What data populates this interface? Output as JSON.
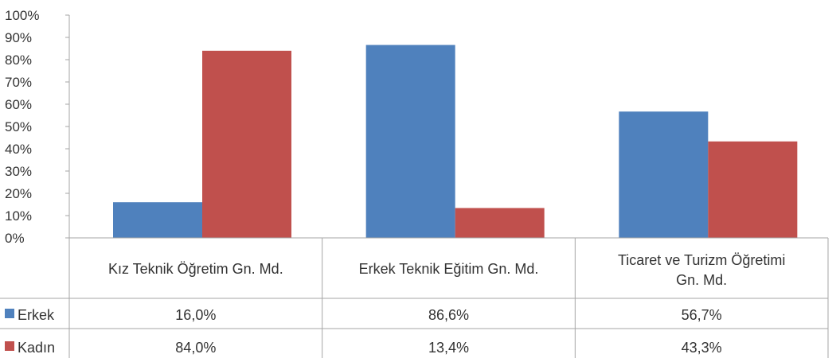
{
  "chart_data": {
    "type": "bar",
    "title": "",
    "xlabel": "",
    "ylabel": "",
    "ylim": [
      0,
      100
    ],
    "y_ticks": [
      "0%",
      "10%",
      "20%",
      "30%",
      "40%",
      "50%",
      "60%",
      "70%",
      "80%",
      "90%",
      "100%"
    ],
    "grid": false,
    "legend_placement": "left-of-data-table",
    "categories": [
      [
        "Kız Teknik Öğretim Gn. Md."
      ],
      [
        "Erkek Teknik Eğitim Gn. Md."
      ],
      [
        "Ticaret ve Turizm Öğretimi",
        "Gn. Md."
      ]
    ],
    "series": [
      {
        "name": "Erkek",
        "color": "#4f81bd",
        "values": [
          16.0,
          86.6,
          56.7
        ],
        "labels": [
          "16,0%",
          "86,6%",
          "56,7%"
        ]
      },
      {
        "name": "Kadın",
        "color": "#c0504d",
        "values": [
          84.0,
          13.4,
          43.3
        ],
        "labels": [
          "84,0%",
          "13,4%",
          "43,3%"
        ]
      }
    ]
  }
}
